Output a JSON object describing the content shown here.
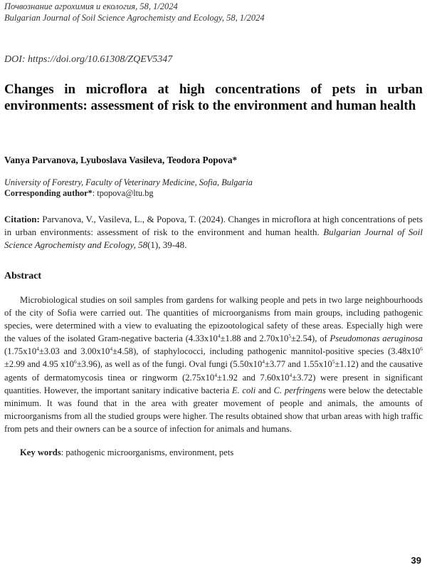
{
  "header": {
    "line1": "Почвознание агрохимия и екология, 58, 1/2024",
    "line2": "Bulgarian Journal of Soil Science Agrochemisty and Ecology, 58, 1/2024"
  },
  "doi": "DOI: https://doi.org/10.61308/ZQEV5347",
  "title": "Changes in microflora at high concentrations of pets in urban environments: assessment of risk to the environment and human health",
  "authors": "Vanya Parvanova, Lyuboslava Vasileva, Teodora Popova*",
  "affiliation": "University of Forestry, Faculty of Veterinary Medicine, Sofia, Bulgaria",
  "corresponding": {
    "label": "Corresponding author*",
    "email": ": tpopova@ltu.bg"
  },
  "citation": {
    "label": "Citation:",
    "text": " Parvanova, V., Vasileva, L., & Popova, T. (2024). Changes in microflora at high concentrations of pets in urban environments: assessment of risk to the environment and human health. ",
    "journal": "Bulgarian Journal of Soil Science Agrochemisty and Ecology, 58",
    "issue": "(1), 39-48."
  },
  "abstract": {
    "heading": "Abstract",
    "p1": "Microbiological studies on soil samples from gardens for walking people and pets in two large neighbourhoods of the city of Sofia were carried out. The quantities of microorganisms from main groups, including pathogenic species, were determined with a view to evaluating the epizootological safety of these areas. Especially high were the values of the isolated Gram-negative bacteria (4.33x10",
    "e1": "4",
    "p2": "±1.88 and 2.70x10",
    "e2": "5",
    "p3": "±2.54), of ",
    "species1": "Pseudomonas aeruginosa",
    "p4": " (1.75x10",
    "e3": "4",
    "p5": "±3.03 and 3.00x10",
    "e4": "4",
    "p6": "±4.58), of staphylococci, including pathogenic mannitol-positive species (3.48x10",
    "e5": "6",
    "p7": " ±2.99 and 4.95 x10",
    "e6": "6",
    "p8": "±3.96), as well as of the fungi. Oval fungi (5.50x10",
    "e7": "4",
    "p9": "±3.77 and 1.55x10",
    "e8": "5",
    "p10": "±1.12) and the causative agents of dermatomycosis tinea or ringworm (2.75x10",
    "e9": "4",
    "p11": "±1.92 and 7.60x10",
    "e10": "4",
    "p12": "±3.72) were present in significant quantities. However, the important sanitary indicative bacteria ",
    "species2": "E. coli",
    "p13": " and ",
    "species3": "C. perfringens",
    "p14": " were below the detectable minimum. It was found that in the area with greater movement of people and animals, the amounts of microorganisms from all the studied groups were higher. The results obtained show that urban areas with high traffic from pets and their owners can be a source of infection for animals and humans."
  },
  "keywords": {
    "label": "Key words",
    "text": ": pathogenic microorganisms, environment, pets"
  },
  "page_number": "39"
}
